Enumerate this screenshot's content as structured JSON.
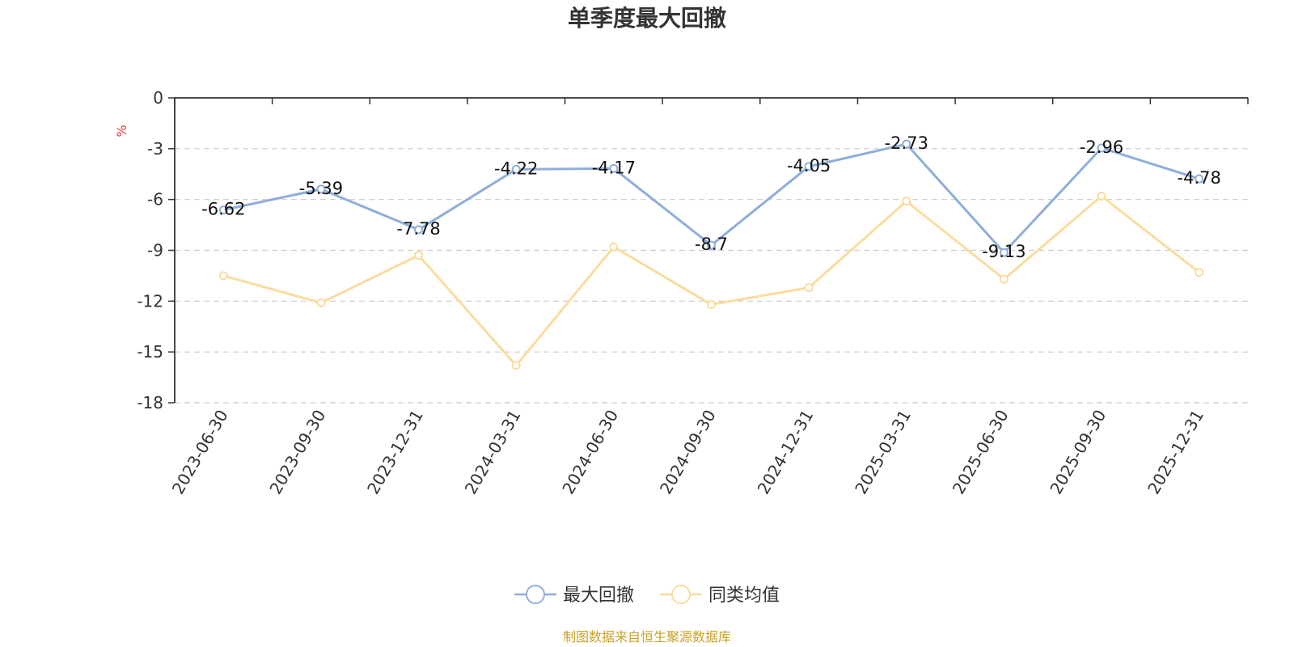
{
  "chart_data": {
    "type": "line",
    "title": "单季度最大回撤",
    "ylabel": "%",
    "ylim": [
      -18,
      0
    ],
    "yticks": [
      0,
      -3,
      -6,
      -9,
      -12,
      -15,
      -18
    ],
    "grid": true,
    "legend_position": "bottom-center",
    "categories": [
      "2023-06-30",
      "2023-09-30",
      "2023-12-31",
      "2024-03-31",
      "2024-06-30",
      "2024-09-30",
      "2024-12-31",
      "2025-03-31",
      "2025-06-30",
      "2025-09-30",
      "2025-12-31"
    ],
    "series": [
      {
        "name": "最大回撤",
        "color": "#8eaedb",
        "show_labels": true,
        "values": [
          -6.62,
          -5.39,
          -7.78,
          -4.22,
          -4.17,
          -8.7,
          -4.05,
          -2.73,
          -9.13,
          -2.96,
          -4.78
        ]
      },
      {
        "name": "同类均值",
        "color": "#f9dc9e",
        "show_labels": false,
        "values": [
          -10.5,
          -12.1,
          -9.3,
          -15.8,
          -8.8,
          -12.2,
          -11.2,
          -6.1,
          -10.7,
          -5.8,
          -10.3
        ]
      }
    ]
  },
  "source_note": "制图数据来自恒生聚源数据库"
}
